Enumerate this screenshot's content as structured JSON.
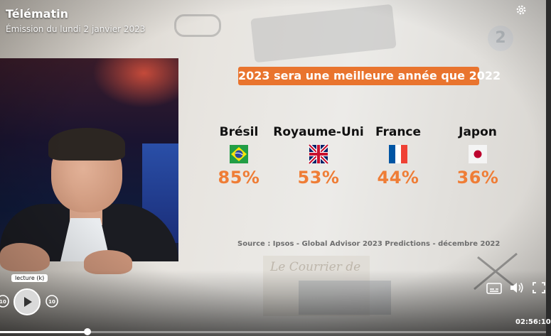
{
  "header": {
    "title": "Télématin",
    "subtitle": "Émission du lundi 2 janvier 2023"
  },
  "background": {
    "paper_text": "Le Courrier de",
    "channel_watermark": "2"
  },
  "infographic": {
    "headline": "2023 sera une meilleure année que 2022",
    "countries": [
      {
        "name": "Brésil",
        "flag": "brazil-flag",
        "percent": "85%"
      },
      {
        "name": "Royaume-Uni",
        "flag": "uk-flag",
        "percent": "53%"
      },
      {
        "name": "France",
        "flag": "france-flag",
        "percent": "44%"
      },
      {
        "name": "Japon",
        "flag": "japan-flag",
        "percent": "36%"
      }
    ],
    "source": "Source : Ipsos - Global Advisor 2023 Predictions - décembre 2022",
    "accent_color": "#ef7d36"
  },
  "player": {
    "tooltip": "lecture (k)",
    "rewind_label": "10",
    "forward_label": "10",
    "timecode": "02:56:10",
    "progress": 0.16,
    "icons": [
      "settings-gear-icon",
      "play-icon",
      "rewind-10-icon",
      "forward-10-icon",
      "subtitles-icon",
      "volume-icon",
      "fullscreen-icon"
    ]
  }
}
